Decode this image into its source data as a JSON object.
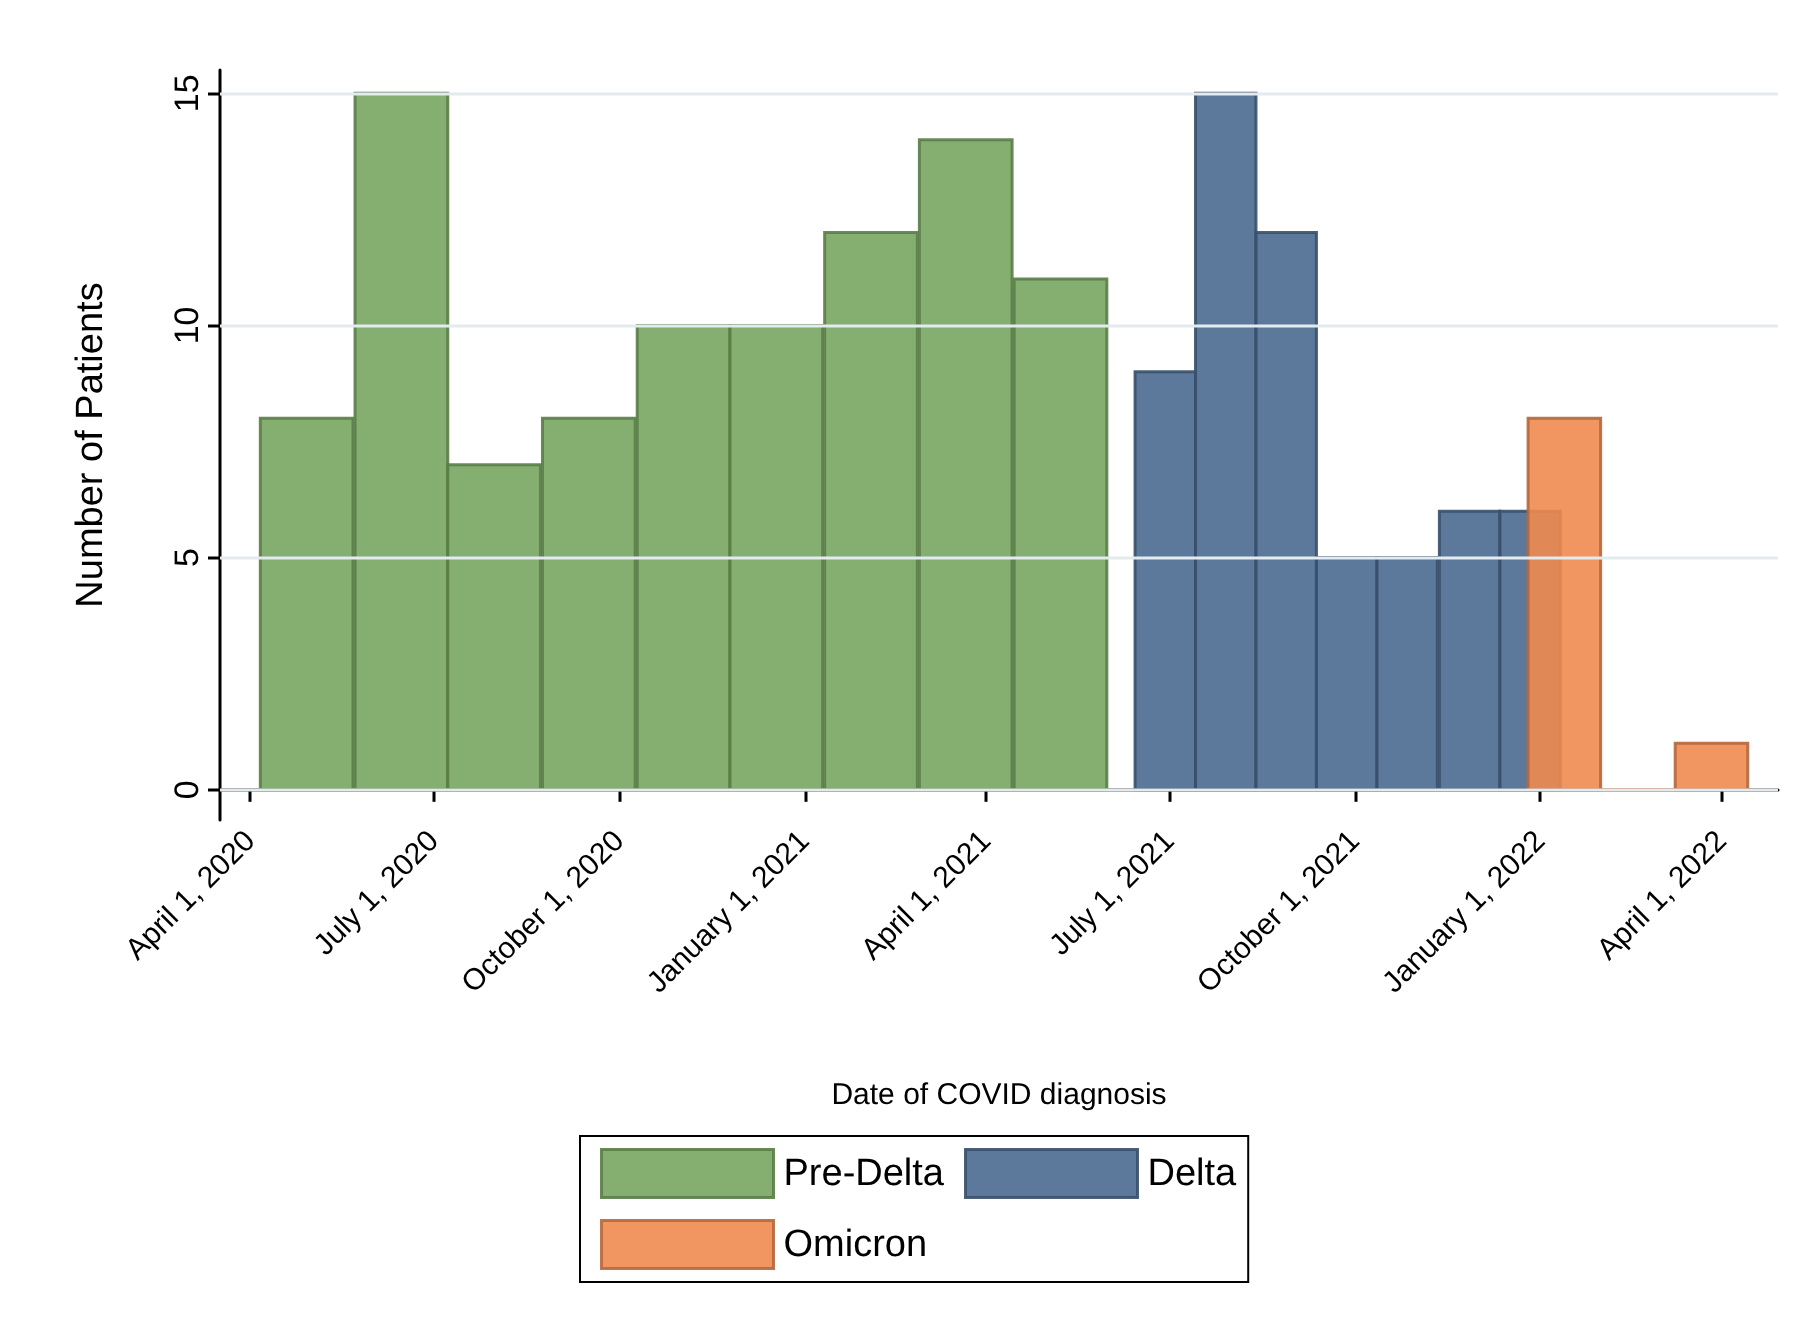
{
  "chart_data": {
    "type": "bar",
    "xlabel": "Date of COVID diagnosis",
    "ylabel": "Number of Patients",
    "xlim": [
      "2020-03-17",
      "2022-04-29"
    ],
    "ylim": [
      -0.65,
      15.5
    ],
    "xticks": [
      {
        "value": "2020-04-01",
        "label": "April 1, 2020"
      },
      {
        "value": "2020-07-01",
        "label": "July 1, 2020"
      },
      {
        "value": "2020-10-01",
        "label": "October 1, 2020"
      },
      {
        "value": "2021-01-01",
        "label": "January 1, 2021"
      },
      {
        "value": "2021-04-01",
        "label": "April 1, 2021"
      },
      {
        "value": "2021-07-01",
        "label": "July 1, 2021"
      },
      {
        "value": "2021-10-01",
        "label": "October 1, 2021"
      },
      {
        "value": "2022-01-01",
        "label": "January 1, 2022"
      },
      {
        "value": "2022-04-01",
        "label": "April 1, 2022"
      }
    ],
    "yticks": [
      0,
      5,
      10,
      15
    ],
    "grid": "y",
    "legend": "bottom",
    "series": [
      {
        "name": "Pre-Delta",
        "color": "#78a660",
        "x": [
          "2020-04-29",
          "2020-06-15",
          "2020-07-31",
          "2020-09-16",
          "2020-11-02",
          "2020-12-18",
          "2021-02-03",
          "2021-03-22",
          "2021-05-08"
        ],
        "values": [
          8,
          15,
          7,
          8,
          10,
          10,
          12,
          14,
          11
        ]
      },
      {
        "name": "Delta",
        "color": "#4a6a90",
        "x": [
          "2021-06-29",
          "2021-07-29",
          "2021-08-28",
          "2021-09-27",
          "2021-10-27",
          "2021-11-27",
          "2021-12-27"
        ],
        "values": [
          9,
          15,
          12,
          5,
          5,
          6,
          6
        ]
      },
      {
        "name": "Omicron",
        "color": "#f08a50",
        "x": [
          "2022-01-13",
          "2022-02-19",
          "2022-03-27"
        ],
        "values": [
          8,
          0,
          1
        ]
      }
    ]
  }
}
